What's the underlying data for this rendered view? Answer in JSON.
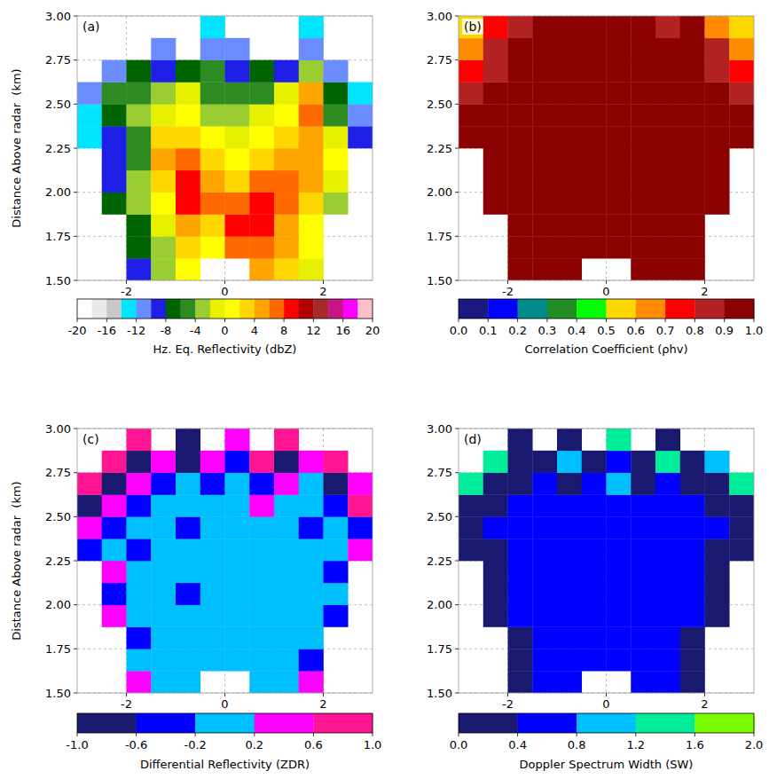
{
  "chart_data": [
    {
      "type": "heatmap",
      "panel_label": "(a)",
      "y_label": "Distance Above radar  (km)",
      "grid": true,
      "xlim": [
        -3,
        3
      ],
      "ylim": [
        1.5,
        3.0
      ],
      "xticks": [
        -2,
        0,
        2
      ],
      "yticks": [
        {
          "value": 1.5,
          "label": "1.50"
        },
        {
          "value": 1.75,
          "label": "1.75"
        },
        {
          "value": 2.0,
          "label": "2.00"
        },
        {
          "value": 2.25,
          "label": "2.25"
        },
        {
          "value": 2.5,
          "label": "2.50"
        },
        {
          "value": 2.75,
          "label": "2.75"
        },
        {
          "value": 3.0,
          "label": "3.00"
        }
      ],
      "x": [
        -2.75,
        -2.25,
        -1.75,
        -1.25,
        -0.75,
        -0.25,
        0.25,
        0.75,
        1.25,
        1.75,
        2.25,
        2.75
      ],
      "y": [
        1.5625,
        1.6875,
        1.8125,
        1.9375,
        2.0625,
        2.1875,
        2.3125,
        2.4375,
        2.5625,
        2.6875,
        2.8125,
        2.9375
      ],
      "cells": [
        [
          null,
          null,
          -10,
          -4,
          0,
          null,
          null,
          4,
          2,
          -2,
          null,
          null
        ],
        [
          null,
          null,
          -8,
          -4,
          2,
          0,
          6,
          6,
          4,
          0,
          null,
          null
        ],
        [
          null,
          null,
          -8,
          -2,
          4,
          2,
          8,
          8,
          4,
          0,
          null,
          null
        ],
        [
          null,
          -8,
          -4,
          0,
          8,
          6,
          6,
          8,
          6,
          2,
          -4,
          null
        ],
        [
          null,
          -10,
          -4,
          2,
          8,
          4,
          2,
          6,
          6,
          4,
          -2,
          null
        ],
        [
          null,
          -10,
          -6,
          4,
          6,
          2,
          0,
          2,
          4,
          4,
          0,
          null
        ],
        [
          -14,
          -10,
          -6,
          2,
          2,
          0,
          -2,
          0,
          2,
          4,
          -2,
          -10
        ],
        [
          -14,
          -8,
          -4,
          -2,
          0,
          -4,
          -4,
          -2,
          0,
          6,
          -6,
          -12
        ],
        [
          -12,
          -6,
          -6,
          -4,
          -2,
          -6,
          -6,
          -6,
          -2,
          4,
          -8,
          -14
        ],
        [
          null,
          -12,
          -8,
          -10,
          -8,
          -6,
          -10,
          -8,
          -10,
          -4,
          -12,
          null
        ],
        [
          null,
          null,
          null,
          -12,
          null,
          -12,
          -12,
          null,
          null,
          -12,
          null,
          null
        ],
        [
          null,
          null,
          null,
          null,
          null,
          -14,
          null,
          null,
          null,
          -14,
          null,
          null
        ]
      ],
      "colorbar": {
        "label": "Hz. Eq. Reflectivity (dbZ)",
        "bounds": [
          -20,
          -18,
          -16,
          -14,
          -12,
          -10,
          -8,
          -6,
          -4,
          -2,
          0,
          2,
          4,
          6,
          8,
          10,
          12,
          14,
          16,
          18,
          20
        ],
        "colors": [
          "#ffffff",
          "#e8e8e8",
          "#c8c8c8",
          "#00e5ff",
          "#6a8cff",
          "#1e1ee6",
          "#006400",
          "#2e8b22",
          "#9acd32",
          "#e6f000",
          "#ffff00",
          "#ffd700",
          "#ffa500",
          "#ff6a00",
          "#ff0000",
          "#b00000",
          "#a52a2a",
          "#c71585",
          "#ff00ff",
          "#ffc0cb"
        ],
        "ticks": [
          -20,
          -16,
          -12,
          -8,
          -4,
          0,
          4,
          8,
          12,
          16,
          20
        ]
      }
    },
    {
      "type": "heatmap",
      "panel_label": "(b)",
      "grid": true,
      "xlim": [
        -3,
        3
      ],
      "ylim": [
        1.5,
        3.0
      ],
      "xticks": [
        -2,
        0,
        2
      ],
      "yticks": [
        {
          "value": 1.5,
          "label": "1.50"
        },
        {
          "value": 1.75,
          "label": "1.75"
        },
        {
          "value": 2.0,
          "label": "2.00"
        },
        {
          "value": 2.25,
          "label": "2.25"
        },
        {
          "value": 2.5,
          "label": "2.50"
        },
        {
          "value": 2.75,
          "label": "2.75"
        },
        {
          "value": 3.0,
          "label": "3.00"
        }
      ],
      "x": [
        -2.75,
        -2.25,
        -1.75,
        -1.25,
        -0.75,
        -0.25,
        0.25,
        0.75,
        1.25,
        1.75,
        2.25,
        2.75
      ],
      "y": [
        1.5625,
        1.6875,
        1.8125,
        1.9375,
        2.0625,
        2.1875,
        2.3125,
        2.4375,
        2.5625,
        2.6875,
        2.8125,
        2.9375
      ],
      "cells": [
        [
          null,
          null,
          0.9,
          0.95,
          0.95,
          null,
          null,
          0.95,
          0.95,
          0.9,
          null,
          null
        ],
        [
          null,
          null,
          0.9,
          0.95,
          0.95,
          0.95,
          0.95,
          0.95,
          0.95,
          0.9,
          null,
          null
        ],
        [
          null,
          null,
          0.9,
          0.95,
          0.95,
          0.95,
          0.95,
          0.95,
          0.95,
          0.9,
          null,
          null
        ],
        [
          null,
          0.9,
          0.95,
          0.95,
          0.95,
          0.95,
          0.95,
          0.95,
          0.95,
          0.95,
          0.9,
          null
        ],
        [
          null,
          0.9,
          0.95,
          0.95,
          0.95,
          0.95,
          0.95,
          0.95,
          0.95,
          0.95,
          0.9,
          null
        ],
        [
          null,
          0.9,
          0.95,
          0.95,
          0.95,
          0.95,
          0.95,
          0.95,
          0.95,
          0.95,
          0.9,
          null
        ],
        [
          0.9,
          0.95,
          0.95,
          0.95,
          0.95,
          0.95,
          0.95,
          0.95,
          0.95,
          0.95,
          0.95,
          0.9
        ],
        [
          0.9,
          0.95,
          0.95,
          0.95,
          0.95,
          0.95,
          0.95,
          0.95,
          0.95,
          0.95,
          0.95,
          0.9
        ],
        [
          0.85,
          0.95,
          0.95,
          0.95,
          0.95,
          0.95,
          0.95,
          0.95,
          0.95,
          0.95,
          0.95,
          0.85
        ],
        [
          0.7,
          0.85,
          0.95,
          0.95,
          0.95,
          0.95,
          0.95,
          0.95,
          0.95,
          0.95,
          0.85,
          0.7
        ],
        [
          0.6,
          0.8,
          0.9,
          0.9,
          0.95,
          0.95,
          0.95,
          0.95,
          0.9,
          0.9,
          0.8,
          0.6
        ],
        [
          0.5,
          0.7,
          0.85,
          0.9,
          0.9,
          0.95,
          0.95,
          0.9,
          0.85,
          0.9,
          0.6,
          0.5
        ]
      ],
      "colorbar": {
        "label": "Correlation Coefficient (ρhv)",
        "bounds": [
          0,
          0.1,
          0.2,
          0.3,
          0.4,
          0.5,
          0.6,
          0.7,
          0.8,
          0.9,
          1.0
        ],
        "colors": [
          "#1a1a80",
          "#0000ff",
          "#008b8b",
          "#228b22",
          "#00ff00",
          "#ffd700",
          "#ff8c00",
          "#ff0000",
          "#b22222",
          "#8b0000"
        ],
        "ticks": [
          {
            "value": 0,
            "label": "0.0"
          },
          {
            "value": 0.1,
            "label": "0.1"
          },
          {
            "value": 0.2,
            "label": "0.2"
          },
          {
            "value": 0.3,
            "label": "0.3"
          },
          {
            "value": 0.4,
            "label": "0.4"
          },
          {
            "value": 0.5,
            "label": "0.5"
          },
          {
            "value": 0.6,
            "label": "0.6"
          },
          {
            "value": 0.7,
            "label": "0.7"
          },
          {
            "value": 0.8,
            "label": "0.8"
          },
          {
            "value": 0.9,
            "label": "0.9"
          },
          {
            "value": 1.0,
            "label": "1.0"
          }
        ]
      }
    },
    {
      "type": "heatmap",
      "panel_label": "(c)",
      "y_label": "Distance Above radar  (km)",
      "grid": true,
      "xlim": [
        -3,
        3
      ],
      "ylim": [
        1.5,
        3.0
      ],
      "xticks": [
        -2,
        0,
        2
      ],
      "yticks": [
        {
          "value": 1.5,
          "label": "1.50"
        },
        {
          "value": 1.75,
          "label": "1.75"
        },
        {
          "value": 2.0,
          "label": "2.00"
        },
        {
          "value": 2.25,
          "label": "2.25"
        },
        {
          "value": 2.5,
          "label": "2.50"
        },
        {
          "value": 2.75,
          "label": "2.75"
        },
        {
          "value": 3.0,
          "label": "3.00"
        }
      ],
      "x": [
        -2.75,
        -2.25,
        -1.75,
        -1.25,
        -0.75,
        -0.25,
        0.25,
        0.75,
        1.25,
        1.75,
        2.25,
        2.75
      ],
      "y": [
        1.5625,
        1.6875,
        1.8125,
        1.9375,
        2.0625,
        2.1875,
        2.3125,
        2.4375,
        2.5625,
        2.6875,
        2.8125,
        2.9375
      ],
      "cells": [
        [
          null,
          null,
          0.3,
          0.0,
          0.0,
          null,
          null,
          0.0,
          0.0,
          0.3,
          null,
          null
        ],
        [
          null,
          null,
          0.0,
          0.0,
          0.0,
          0.0,
          0.0,
          0.0,
          0.0,
          -0.3,
          null,
          null
        ],
        [
          null,
          null,
          -0.3,
          0.0,
          0.0,
          0.0,
          0.0,
          0.0,
          0.0,
          0.0,
          null,
          null
        ],
        [
          null,
          0.3,
          0.0,
          0.0,
          0.0,
          0.0,
          0.0,
          0.0,
          0.0,
          0.0,
          -0.3,
          null
        ],
        [
          null,
          -0.3,
          0.0,
          0.0,
          -0.3,
          0.0,
          0.0,
          0.0,
          0.0,
          0.0,
          0.0,
          null
        ],
        [
          null,
          0.3,
          0.0,
          0.0,
          0.0,
          0.0,
          0.0,
          0.0,
          0.0,
          0.0,
          -0.3,
          null
        ],
        [
          -0.3,
          0.0,
          -0.3,
          0.0,
          0.0,
          0.0,
          0.0,
          0.0,
          0.0,
          0.0,
          0.0,
          0.3
        ],
        [
          0.3,
          -0.3,
          0.0,
          0.0,
          -0.3,
          0.0,
          0.0,
          0.0,
          0.0,
          -0.3,
          0.0,
          -0.3
        ],
        [
          -0.7,
          0.3,
          -0.3,
          0.0,
          0.0,
          0.0,
          0.0,
          0.3,
          0.0,
          0.0,
          -0.3,
          0.7
        ],
        [
          0.7,
          -0.7,
          0.3,
          -0.3,
          0.0,
          -0.3,
          0.0,
          -0.3,
          0.3,
          0.0,
          -0.7,
          0.3
        ],
        [
          null,
          0.7,
          -0.7,
          0.3,
          -0.7,
          0.3,
          -0.3,
          0.7,
          -0.7,
          0.3,
          0.7,
          null
        ],
        [
          null,
          null,
          0.7,
          null,
          -0.7,
          null,
          0.3,
          null,
          0.7,
          null,
          null,
          null
        ]
      ],
      "colorbar": {
        "label": "Differential Reflectivity (ZDR)",
        "bounds": [
          -1.0,
          -0.6,
          -0.2,
          0.2,
          0.6,
          1.0
        ],
        "colors": [
          "#191970",
          "#0000ff",
          "#00bfff",
          "#ff00ff",
          "#ff1493"
        ],
        "ticks": [
          {
            "value": -1.0,
            "label": "-1.0"
          },
          {
            "value": -0.6,
            "label": "-0.6"
          },
          {
            "value": -0.2,
            "label": "-0.2"
          },
          {
            "value": 0.2,
            "label": "0.2"
          },
          {
            "value": 0.6,
            "label": "0.6"
          },
          {
            "value": 1.0,
            "label": "1.0"
          }
        ]
      }
    },
    {
      "type": "heatmap",
      "panel_label": "(d)",
      "grid": true,
      "xlim": [
        -3,
        3
      ],
      "ylim": [
        1.5,
        3.0
      ],
      "xticks": [
        -2,
        0,
        2
      ],
      "yticks": [
        {
          "value": 1.5,
          "label": "1.50"
        },
        {
          "value": 1.75,
          "label": "1.75"
        },
        {
          "value": 2.0,
          "label": "2.00"
        },
        {
          "value": 2.25,
          "label": "2.25"
        },
        {
          "value": 2.5,
          "label": "2.50"
        },
        {
          "value": 2.75,
          "label": "2.75"
        },
        {
          "value": 3.0,
          "label": "3.00"
        }
      ],
      "x": [
        -2.75,
        -2.25,
        -1.75,
        -1.25,
        -0.75,
        -0.25,
        0.25,
        0.75,
        1.25,
        1.75,
        2.25,
        2.75
      ],
      "y": [
        1.5625,
        1.6875,
        1.8125,
        1.9375,
        2.0625,
        2.1875,
        2.3125,
        2.4375,
        2.5625,
        2.6875,
        2.8125,
        2.9375
      ],
      "cells": [
        [
          null,
          null,
          0.2,
          0.6,
          0.6,
          null,
          null,
          0.6,
          0.6,
          0.2,
          null,
          null
        ],
        [
          null,
          null,
          0.2,
          0.6,
          0.6,
          0.6,
          0.6,
          0.6,
          0.6,
          0.2,
          null,
          null
        ],
        [
          null,
          null,
          0.2,
          0.6,
          0.6,
          0.6,
          0.6,
          0.6,
          0.6,
          0.2,
          null,
          null
        ],
        [
          null,
          0.2,
          0.6,
          0.6,
          0.6,
          0.6,
          0.6,
          0.6,
          0.6,
          0.6,
          0.2,
          null
        ],
        [
          null,
          0.2,
          0.6,
          0.6,
          0.6,
          0.6,
          0.6,
          0.6,
          0.6,
          0.6,
          0.2,
          null
        ],
        [
          null,
          0.2,
          0.6,
          0.6,
          0.6,
          0.6,
          0.6,
          0.6,
          0.6,
          0.6,
          0.2,
          null
        ],
        [
          0.2,
          0.2,
          0.6,
          0.6,
          0.6,
          0.6,
          0.6,
          0.6,
          0.6,
          0.6,
          0.2,
          0.2
        ],
        [
          0.2,
          0.6,
          0.6,
          0.6,
          0.6,
          0.6,
          0.6,
          0.6,
          0.6,
          0.6,
          0.6,
          0.2
        ],
        [
          0.2,
          0.2,
          0.6,
          0.6,
          0.6,
          0.6,
          0.6,
          0.6,
          0.6,
          0.6,
          0.2,
          0.2
        ],
        [
          1.4,
          0.2,
          0.2,
          0.6,
          0.2,
          0.6,
          1.0,
          0.2,
          0.6,
          0.2,
          0.2,
          1.4
        ],
        [
          null,
          1.4,
          0.2,
          0.2,
          1.0,
          0.2,
          0.6,
          0.2,
          1.4,
          0.2,
          1.0,
          null
        ],
        [
          null,
          null,
          0.2,
          null,
          0.2,
          null,
          1.4,
          null,
          0.2,
          null,
          null,
          null
        ]
      ],
      "colorbar": {
        "label": "Doppler Spectrum Width (SW)",
        "bounds": [
          0,
          0.4,
          0.8,
          1.2,
          1.6,
          2.0
        ],
        "colors": [
          "#191970",
          "#0000ff",
          "#00bfff",
          "#00ee99",
          "#7cfc00"
        ],
        "ticks": [
          {
            "value": 0,
            "label": "0.0"
          },
          {
            "value": 0.4,
            "label": "0.4"
          },
          {
            "value": 0.8,
            "label": "0.8"
          },
          {
            "value": 1.2,
            "label": "1.2"
          },
          {
            "value": 1.6,
            "label": "1.6"
          },
          {
            "value": 2.0,
            "label": "2.0"
          }
        ]
      }
    }
  ]
}
